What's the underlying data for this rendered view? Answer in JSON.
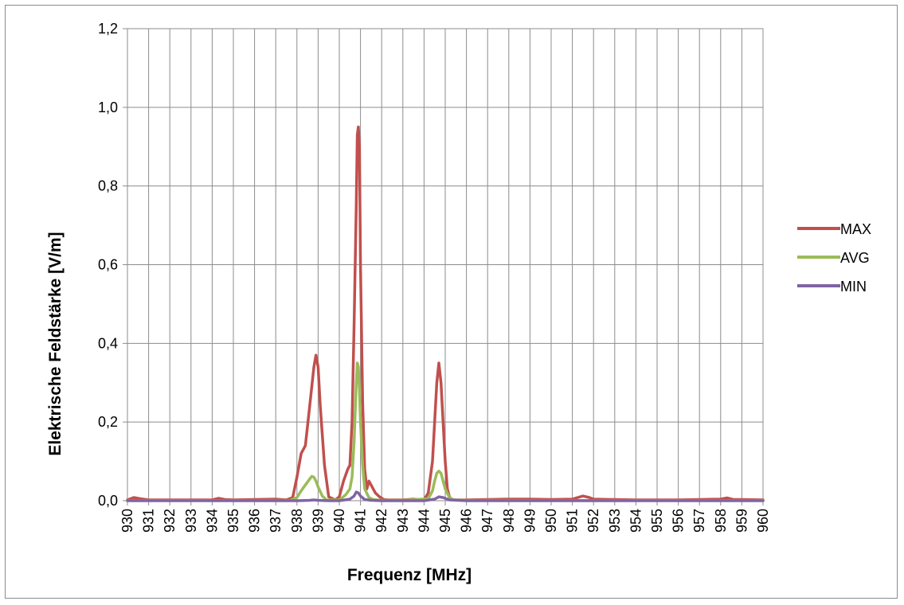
{
  "chart_data": {
    "type": "line",
    "xlabel": "Frequenz [MHz]",
    "ylabel": "Elektrische Feldstärke [V/m]",
    "xlim": [
      930,
      960
    ],
    "ylim": [
      0,
      1.2
    ],
    "x_ticks": [
      "930",
      "931",
      "932",
      "933",
      "934",
      "935",
      "936",
      "937",
      "938",
      "939",
      "940",
      "941",
      "942",
      "943",
      "944",
      "945",
      "946",
      "947",
      "948",
      "949",
      "950",
      "951",
      "952",
      "953",
      "954",
      "955",
      "956",
      "957",
      "958",
      "959",
      "960"
    ],
    "y_ticks": [
      "0,0",
      "0,2",
      "0,4",
      "0,6",
      "0,8",
      "1,0",
      "1,2"
    ],
    "y_tick_values": [
      0,
      0.2,
      0.4,
      0.6,
      0.8,
      1.0,
      1.2
    ],
    "grid": true,
    "legend_position": "right",
    "series": [
      {
        "name": "MAX",
        "color": "#c0504d",
        "x": [
          930,
          930.3,
          930.6,
          931,
          932,
          933,
          934,
          934.3,
          934.6,
          935,
          936,
          937,
          937.5,
          937.8,
          938,
          938.2,
          938.4,
          938.6,
          938.8,
          938.9,
          939.0,
          939.1,
          939.3,
          939.5,
          939.8,
          940,
          940.2,
          940.4,
          940.5,
          940.6,
          940.7,
          940.8,
          940.85,
          940.9,
          940.95,
          941.0,
          941.1,
          941.2,
          941.3,
          941.4,
          941.5,
          941.7,
          941.9,
          942.1,
          942.3,
          942.6,
          943,
          943.5,
          944,
          944.2,
          944.4,
          944.5,
          944.6,
          944.7,
          944.8,
          944.9,
          945.0,
          945.1,
          945.2,
          945.3,
          945.5,
          946,
          947,
          948,
          949,
          950,
          951,
          951.5,
          951.8,
          952,
          953,
          954,
          955,
          956,
          957,
          958,
          958.3,
          958.6,
          959,
          960
        ],
        "values": [
          0.002,
          0.008,
          0.005,
          0.002,
          0.002,
          0.002,
          0.002,
          0.006,
          0.003,
          0.002,
          0.003,
          0.004,
          0.002,
          0.008,
          0.06,
          0.12,
          0.14,
          0.24,
          0.34,
          0.37,
          0.34,
          0.24,
          0.09,
          0.01,
          0.002,
          0.01,
          0.05,
          0.08,
          0.09,
          0.2,
          0.45,
          0.75,
          0.93,
          0.95,
          0.9,
          0.6,
          0.25,
          0.08,
          0.03,
          0.05,
          0.04,
          0.02,
          0.01,
          0.003,
          0.002,
          0.002,
          0.002,
          0.004,
          0.002,
          0.02,
          0.1,
          0.2,
          0.3,
          0.35,
          0.3,
          0.2,
          0.1,
          0.03,
          0.01,
          0.003,
          0.002,
          0.002,
          0.003,
          0.004,
          0.004,
          0.003,
          0.004,
          0.012,
          0.008,
          0.004,
          0.003,
          0.002,
          0.002,
          0.002,
          0.003,
          0.004,
          0.007,
          0.003,
          0.003,
          0.002
        ]
      },
      {
        "name": "AVG",
        "color": "#9bbb59",
        "x": [
          930,
          936,
          937.7,
          938,
          938.2,
          938.4,
          938.6,
          938.7,
          938.8,
          938.9,
          939.0,
          939.2,
          939.4,
          940,
          940.3,
          940.5,
          940.6,
          940.7,
          940.8,
          940.85,
          940.9,
          940.95,
          941.0,
          941.1,
          941.2,
          941.4,
          941.6,
          942,
          943,
          944.2,
          944.4,
          944.5,
          944.6,
          944.7,
          944.8,
          944.9,
          945.0,
          945.2,
          945.4,
          946,
          950,
          955,
          960
        ],
        "values": [
          0.0005,
          0.0005,
          0.001,
          0.008,
          0.025,
          0.04,
          0.055,
          0.062,
          0.06,
          0.05,
          0.035,
          0.012,
          0.002,
          0.002,
          0.015,
          0.03,
          0.06,
          0.15,
          0.3,
          0.35,
          0.34,
          0.28,
          0.2,
          0.09,
          0.03,
          0.008,
          0.003,
          0.001,
          0.001,
          0.005,
          0.025,
          0.05,
          0.07,
          0.075,
          0.07,
          0.05,
          0.03,
          0.008,
          0.002,
          0.001,
          0.0005,
          0.0005,
          0.0005
        ]
      },
      {
        "name": "MIN",
        "color": "#8064a2",
        "x": [
          930,
          938,
          938.6,
          938.8,
          939.0,
          939.5,
          940,
          940.5,
          940.7,
          940.8,
          940.9,
          941.0,
          941.2,
          941.5,
          942,
          944,
          944.5,
          944.7,
          944.9,
          945.2,
          946,
          960
        ],
        "values": [
          0,
          0,
          0.001,
          0.002,
          0.001,
          0,
          0,
          0.004,
          0.012,
          0.022,
          0.02,
          0.012,
          0.003,
          0.001,
          0,
          0,
          0.004,
          0.01,
          0.008,
          0.002,
          0,
          0
        ]
      }
    ]
  }
}
